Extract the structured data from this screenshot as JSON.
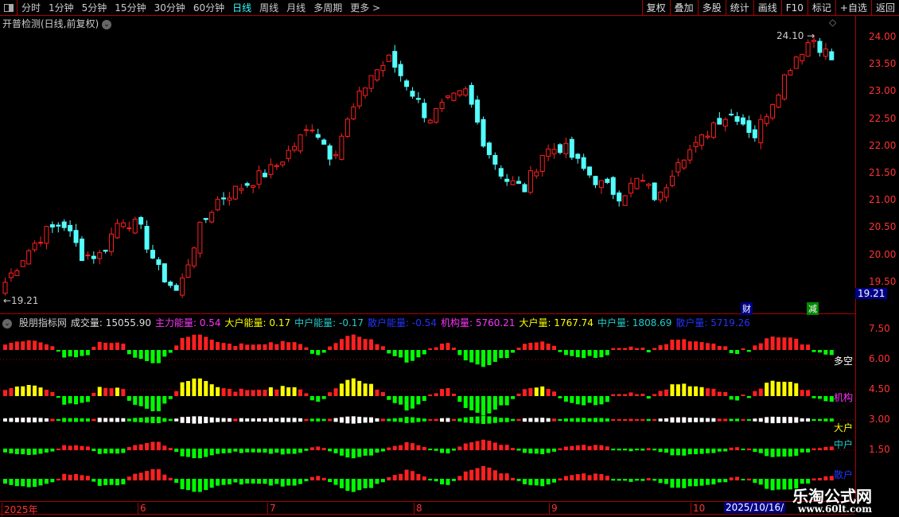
{
  "toolbar": {
    "periods": [
      "分时",
      "1分钟",
      "5分钟",
      "15分钟",
      "30分钟",
      "60分钟",
      "日线",
      "周线",
      "月线",
      "多周期",
      "更多 >"
    ],
    "active_period": "日线",
    "buttons": [
      "复权",
      "叠加",
      "多股",
      "统计",
      "画线",
      "F10",
      "标记",
      "+自选",
      "返回"
    ]
  },
  "chart_title": "开普检测(日线,前复权)",
  "price_axis": [
    "24.00",
    "23.50",
    "23.00",
    "22.50",
    "22.00",
    "21.50",
    "21.00",
    "20.50",
    "20.00",
    "19.50"
  ],
  "price_axis_values": [
    24,
    23.5,
    23,
    22.5,
    22,
    21.5,
    21,
    20.5,
    20,
    19.5
  ],
  "high_label": "24.10",
  "low_label": "19.21",
  "last_price": "19.21",
  "tags": {
    "cai": "财",
    "jian": "减"
  },
  "colors": {
    "up": "#ff2020",
    "down": "#54ffff",
    "green": "#00ff00",
    "yellow": "#ffff00",
    "white": "#ffffff"
  },
  "key_closes": [
    19.5,
    20.0,
    20.4,
    20.6,
    20.0,
    20.0,
    20.7,
    20.5,
    19.7,
    19.3,
    20.4,
    21.0,
    21.2,
    21.4,
    21.6,
    22.0,
    22.4,
    21.8,
    22.6,
    23.3,
    23.6,
    23.1,
    22.5,
    22.8,
    23.0,
    22.0,
    21.4,
    21.2,
    21.9,
    22.0,
    21.6,
    21.3,
    21.1,
    21.4,
    21.0,
    21.8,
    22.0,
    22.5,
    22.6,
    22.2,
    22.9,
    23.6,
    24.0,
    23.6
  ],
  "indicator": {
    "name": "股朋指标网",
    "items": [
      {
        "label": "成交量: 15055.90",
        "color": "#dddddd"
      },
      {
        "label": "主力能量: 0.54",
        "color": "#ff33ff"
      },
      {
        "label": "大户能量: 0.17",
        "color": "#ffff00"
      },
      {
        "label": "中户能量: -0.17",
        "color": "#22cccc"
      },
      {
        "label": "散户能量: -0.54",
        "color": "#2233ff"
      },
      {
        "label": "机构量: 5760.21",
        "color": "#ff33ff"
      },
      {
        "label": "大户量: 1767.74",
        "color": "#ffff00"
      },
      {
        "label": "中户量: 1808.69",
        "color": "#22cccc"
      },
      {
        "label": "散户量: 5719.26",
        "color": "#2233ff"
      }
    ],
    "axis": [
      "7.50",
      "6.00",
      "4.50",
      "3.00",
      "1.50"
    ],
    "row_labels": {
      "duokong": "多空",
      "jigou": "机构",
      "dahu": "大户",
      "zhonghu": "中户",
      "sanhu": "散户"
    }
  },
  "date_axis": {
    "labels": [
      "2025年",
      "6",
      "7",
      "8",
      "9",
      "10"
    ],
    "current": "2025/10/16/"
  },
  "watermark": {
    "line1": "乐淘公式网",
    "line2": "www.60lt.com"
  }
}
